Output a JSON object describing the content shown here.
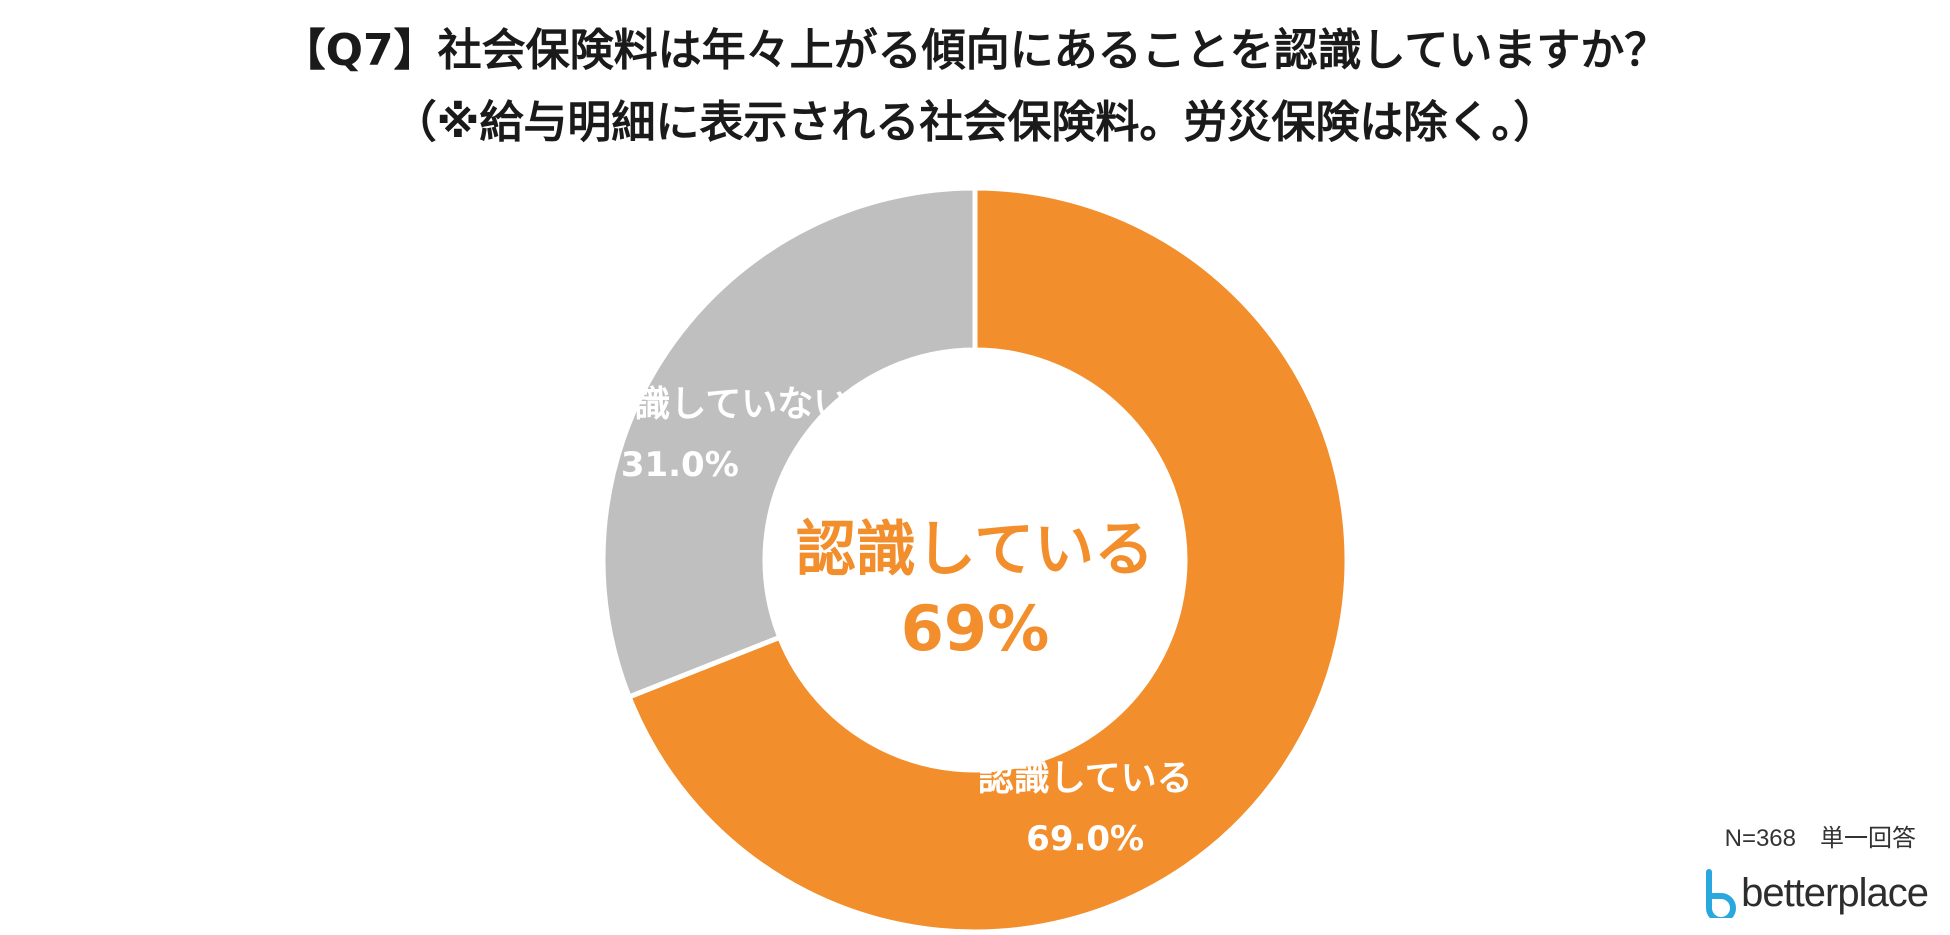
{
  "title_line1": "【Q7】社会保険料は年々上がる傾向にあることを認識していますか？",
  "title_line2": "（※給与明細に表示される社会保険料。労災保険は除く。）",
  "chart_data": {
    "type": "pie",
    "variant": "donut",
    "categories": [
      "認識している",
      "認識していない"
    ],
    "values": [
      69.0,
      31.0
    ],
    "value_labels": [
      "69.0%",
      "31.0%"
    ],
    "colors": [
      "#F28E2B",
      "#BFBFBF"
    ],
    "center_label": {
      "text": "認識している",
      "value": "69%"
    }
  },
  "footnote": {
    "sample": "N=368",
    "answer_type": "単一回答"
  },
  "logo": {
    "text": "betterplace",
    "color": "#29A8E0"
  }
}
